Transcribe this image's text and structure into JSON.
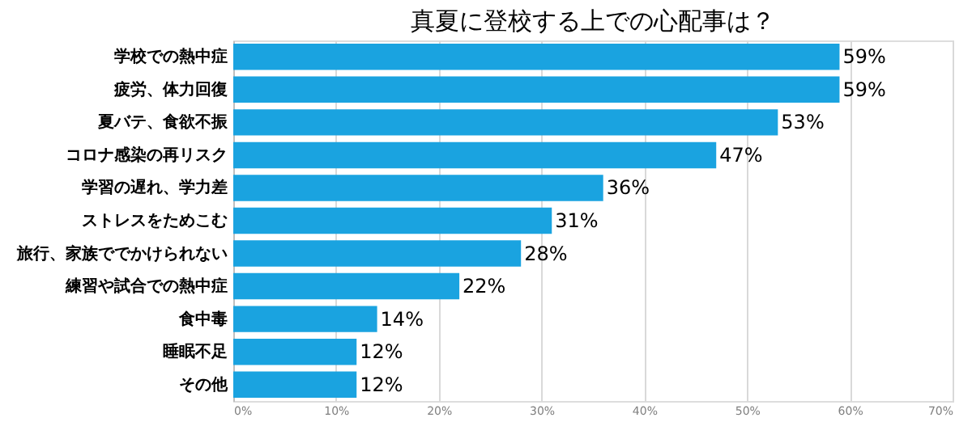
{
  "chart_data": {
    "type": "bar",
    "orientation": "horizontal",
    "title": "真夏に登校する上での心配事は？",
    "categories": [
      "学校での熱中症",
      "疲労、体力回復",
      "夏バテ、食欲不振",
      "コロナ感染の再リスク",
      "学習の遅れ、学力差",
      "ストレスをためこむ",
      "旅行、家族ででかけられない",
      "練習や試合での熱中症",
      "食中毒",
      "睡眠不足",
      "その他"
    ],
    "values": [
      59,
      59,
      53,
      47,
      36,
      31,
      28,
      22,
      14,
      12,
      12
    ],
    "value_labels": [
      "59%",
      "59%",
      "53%",
      "47%",
      "36%",
      "31%",
      "28%",
      "22%",
      "14%",
      "12%",
      "12%"
    ],
    "color": "#1aa3e0",
    "xlim": [
      0,
      70
    ],
    "xticks": [
      {
        "value": 0,
        "label": "0%"
      },
      {
        "value": 10,
        "label": "10%"
      },
      {
        "value": 20,
        "label": "20%"
      },
      {
        "value": 30,
        "label": "30%"
      },
      {
        "value": 40,
        "label": "40%"
      },
      {
        "value": 50,
        "label": "50%"
      },
      {
        "value": 60,
        "label": "60%"
      },
      {
        "value": 70,
        "label": "70%"
      }
    ],
    "grid": "x"
  }
}
